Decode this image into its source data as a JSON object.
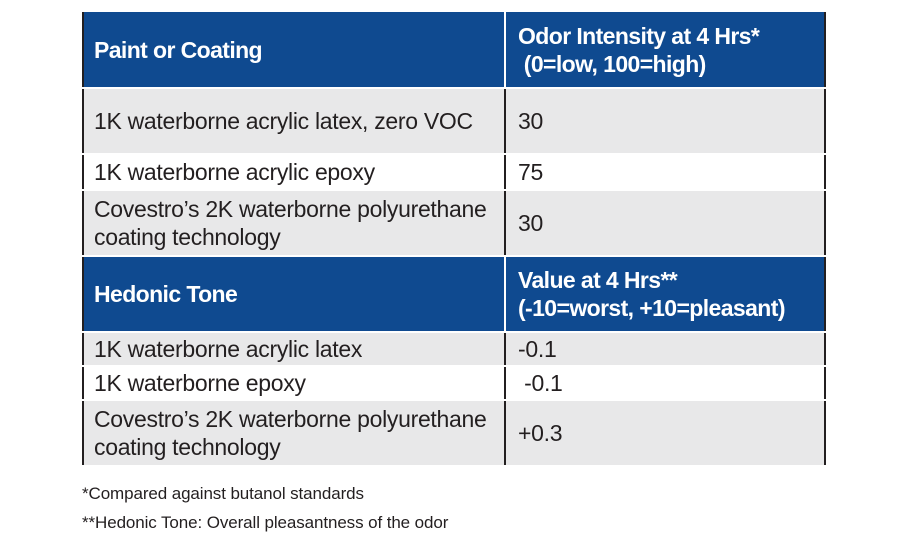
{
  "table": {
    "sections": [
      {
        "header": {
          "col1": "Paint or Coating",
          "col2_line1": "Odor Intensity at 4 Hrs*",
          "col2_line2": " (0=low, 100=high)"
        },
        "rows": [
          {
            "name": "1K waterborne acrylic latex, zero VOC",
            "value": "30"
          },
          {
            "name": "1K waterborne acrylic epoxy",
            "value": "75"
          },
          {
            "name": "Covestro’s 2K waterborne polyurethane coating technology",
            "value": "30"
          }
        ]
      },
      {
        "header": {
          "col1": "Hedonic Tone",
          "col2_line1": "Value at 4 Hrs**",
          "col2_line2": "(-10=worst, +10=pleasant)"
        },
        "rows": [
          {
            "name": "1K waterborne acrylic latex",
            "value": "-0.1"
          },
          {
            "name": "1K waterborne epoxy",
            "value": " -0.1"
          },
          {
            "name": "Covestro’s 2K waterborne polyurethane coating technology",
            "value": "+0.3"
          }
        ]
      }
    ]
  },
  "footnotes": {
    "note1": "*Compared against butanol standards",
    "note2": "**Hedonic Tone: Overall pleasantness of the odor"
  },
  "colors": {
    "header_blue": "#0f4a90",
    "row_shade": "#e8e8e9",
    "text": "#231f20"
  }
}
